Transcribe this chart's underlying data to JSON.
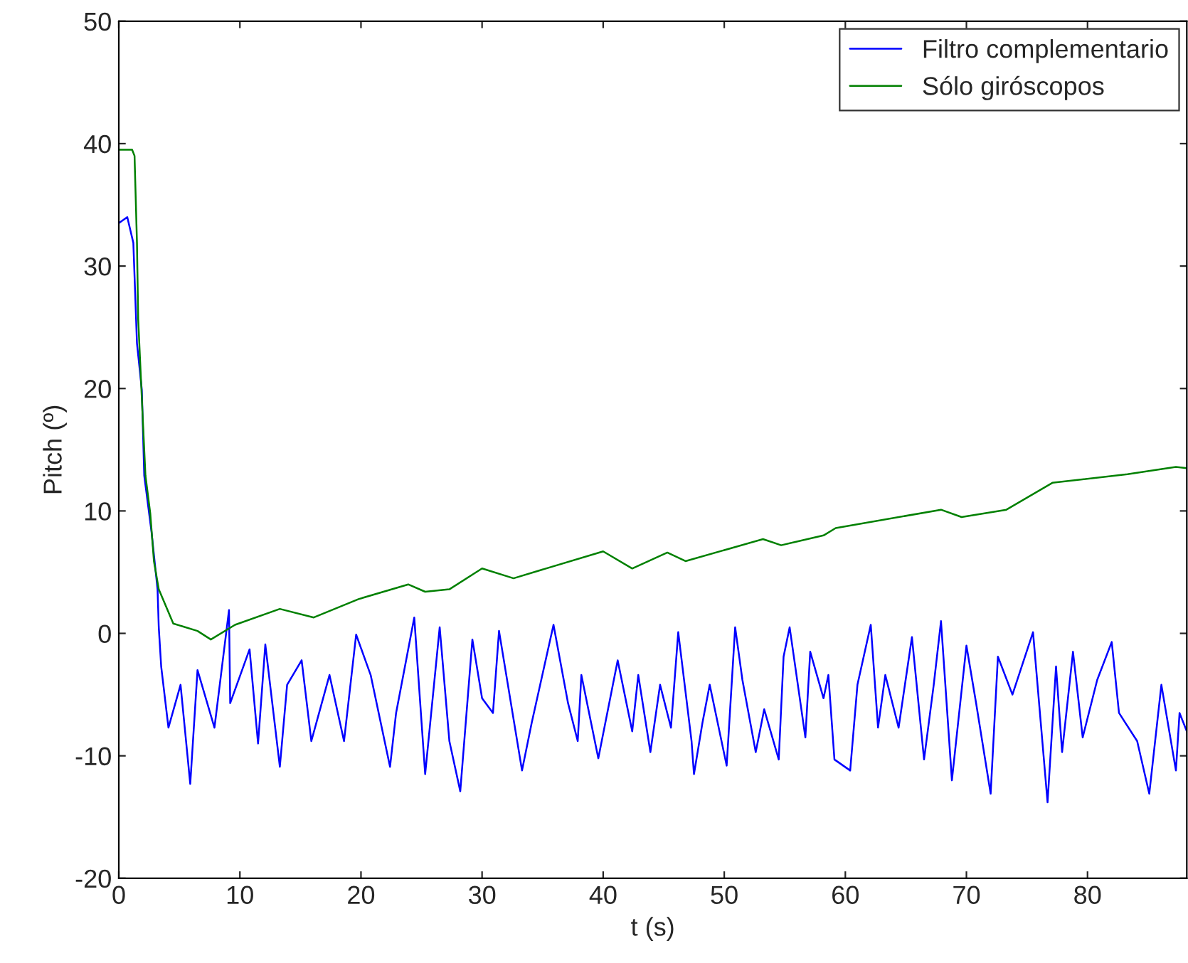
{
  "chart_data": {
    "type": "line",
    "xlabel": "t (s)",
    "ylabel": "Pitch (º)",
    "xlim": [
      0,
      88.2
    ],
    "xticks": [
      0,
      10,
      20,
      30,
      40,
      50,
      60,
      70,
      80
    ],
    "ylim": [
      -20,
      50
    ],
    "yticks": [
      -20,
      -10,
      0,
      10,
      20,
      30,
      40,
      50
    ],
    "grid": false,
    "legend": "top right",
    "marker": "none",
    "line_style": "solid",
    "series": [
      {
        "name": "Filtro complementario",
        "color": "#0000ff",
        "x": [
          0,
          0.7,
          1.2,
          1.5,
          1.9,
          2.1,
          2.7,
          3.2,
          3.3,
          3.5,
          4.1,
          5.1,
          5.9,
          6.5,
          7.9,
          9.1,
          9.2,
          10.8,
          11.5,
          12.1,
          13.3,
          13.9,
          15.1,
          15.9,
          17.4,
          18.6,
          19.6,
          20.8,
          22.4,
          22.9,
          24.4,
          25.3,
          26.5,
          27.3,
          28.2,
          29.2,
          30,
          30.9,
          31.4,
          33.3,
          34.1,
          35.9,
          37.1,
          37.9,
          38.2,
          39.6,
          41.2,
          42.4,
          42.9,
          43.9,
          44.7,
          45.6,
          46.2,
          47.3,
          47.5,
          48.2,
          48.8,
          50.2,
          50.9,
          51.5,
          52.6,
          53.3,
          54.5,
          54.9,
          55.4,
          56.7,
          57.1,
          58.2,
          58.6,
          59.1,
          60.4,
          61,
          62.1,
          62.7,
          63.3,
          64.4,
          65.5,
          66.5,
          67.3,
          67.9,
          68.8,
          70,
          70.8,
          72,
          72.6,
          73.8,
          75.5,
          76.7,
          77.4,
          77.9,
          78.8,
          79.6,
          80.8,
          82,
          82.6,
          84.1,
          85.1,
          86.1,
          87.3,
          87.6,
          88.2
        ],
        "values": [
          33.5,
          34,
          31.9,
          23.7,
          19.9,
          12.9,
          8.3,
          3.6,
          0.5,
          -2.7,
          -7.7,
          -4.2,
          -12.3,
          -3,
          -7.7,
          1.9,
          -5.7,
          -1.3,
          -9,
          -0.9,
          -10.9,
          -4.2,
          -2.2,
          -8.8,
          -3.4,
          -8.8,
          -0.1,
          -3.4,
          -10.9,
          -6.5,
          1.3,
          -11.5,
          0.5,
          -8.8,
          -12.9,
          -0.5,
          -5.3,
          -6.5,
          0.2,
          -11.2,
          -7.3,
          0.7,
          -5.7,
          -8.8,
          -3.4,
          -10.2,
          -2.2,
          -8,
          -3.4,
          -9.7,
          -4.2,
          -7.7,
          0.1,
          -8.8,
          -11.5,
          -7.3,
          -4.2,
          -10.8,
          0.5,
          -3.8,
          -9.7,
          -6.2,
          -10.3,
          -1.9,
          0.5,
          -8.5,
          -1.5,
          -5.3,
          -3.4,
          -10.3,
          -11.2,
          -4.2,
          0.7,
          -7.7,
          -3.4,
          -7.7,
          -0.3,
          -10.3,
          -4.2,
          1,
          -12,
          -1,
          -5.7,
          -13.1,
          -1.9,
          -5,
          0.1,
          -13.8,
          -2.7,
          -9.7,
          -1.5,
          -8.5,
          -3.8,
          -0.7,
          -6.5,
          -8.8,
          -13.1,
          -4.2,
          -11.2,
          -6.5,
          -8
        ]
      },
      {
        "name": "Sólo giróscopos",
        "color": "#008000",
        "x": [
          0,
          1.1,
          1.3,
          1.5,
          1.6,
          2,
          2.2,
          2.6,
          2.9,
          3.3,
          4.5,
          6.5,
          7.6,
          9.6,
          13.3,
          16.1,
          19.8,
          23.9,
          25.3,
          27.3,
          30,
          32.6,
          40,
          42.4,
          45.3,
          46.8,
          53.2,
          54.7,
          58.2,
          59.2,
          67.9,
          69.6,
          73.3,
          77.1,
          83.3,
          87.3,
          88.2
        ],
        "values": [
          39.5,
          39.5,
          39,
          31.9,
          25.7,
          17.1,
          12.9,
          9.8,
          5.9,
          3.6,
          0.8,
          0.2,
          -0.5,
          0.7,
          2,
          1.3,
          2.8,
          4,
          3.4,
          3.6,
          5.3,
          4.5,
          6.7,
          5.3,
          6.6,
          5.9,
          7.7,
          7.2,
          8,
          8.6,
          10.1,
          9.5,
          10.1,
          12.3,
          13,
          13.6,
          13.5
        ]
      }
    ]
  }
}
